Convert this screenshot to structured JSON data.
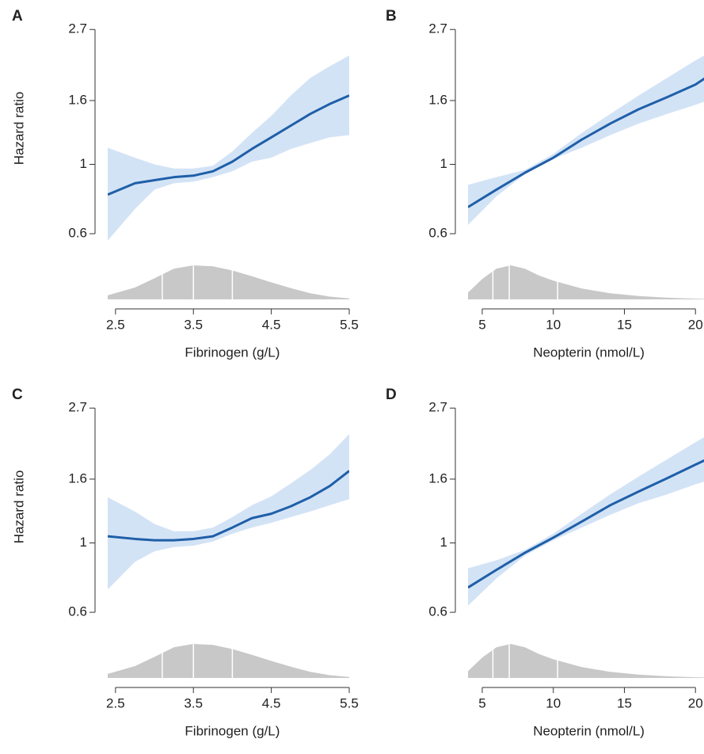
{
  "chart_data": [
    {
      "type": "line",
      "panel": "A",
      "ylabel": "Hazard ratio",
      "xlabel": "Fibrinogen (g/L)",
      "log_y": true,
      "xlim": [
        2.4,
        5.5
      ],
      "ylim": [
        0.55,
        2.8
      ],
      "xticks": [
        2.5,
        3.5,
        4.5,
        5.5
      ],
      "yticks": [
        0.6,
        1,
        1.6,
        2.7
      ],
      "x": [
        2.4,
        2.75,
        3.0,
        3.25,
        3.5,
        3.75,
        4.0,
        4.25,
        4.5,
        4.75,
        5.0,
        5.25,
        5.5
      ],
      "series": [
        {
          "color": "#1f5fa8",
          "band_color": "#d3e3f6",
          "values": [
            0.8,
            0.87,
            0.89,
            0.91,
            0.92,
            0.95,
            1.02,
            1.12,
            1.22,
            1.33,
            1.45,
            1.56,
            1.66
          ],
          "lower": [
            0.57,
            0.72,
            0.83,
            0.87,
            0.88,
            0.91,
            0.95,
            1.02,
            1.05,
            1.12,
            1.17,
            1.22,
            1.24
          ],
          "upper": [
            1.13,
            1.05,
            1.0,
            0.97,
            0.97,
            0.99,
            1.1,
            1.26,
            1.43,
            1.66,
            1.89,
            2.06,
            2.23
          ]
        }
      ],
      "density": {
        "color": "#c8c8c8",
        "ylim": [
          0,
          1
        ],
        "x": [
          2.4,
          2.75,
          3.0,
          3.25,
          3.5,
          3.75,
          4.0,
          4.25,
          4.5,
          4.75,
          5.0,
          5.25,
          5.5
        ],
        "values": [
          0.12,
          0.35,
          0.62,
          0.9,
          1.0,
          0.97,
          0.85,
          0.68,
          0.5,
          0.33,
          0.18,
          0.08,
          0.03
        ],
        "markers": [
          3.1,
          3.5,
          4.0
        ]
      }
    },
    {
      "type": "line",
      "panel": "B",
      "xlabel": "Neopterin (nmol/L)",
      "log_y": true,
      "xlim": [
        4,
        20.6
      ],
      "ylim": [
        0.55,
        2.8
      ],
      "xticks": [
        5,
        10,
        15,
        20
      ],
      "yticks": [
        0.6,
        1,
        1.6,
        2.7
      ],
      "x": [
        4,
        6,
        8,
        10,
        12,
        14,
        16,
        18,
        20,
        21
      ],
      "series": [
        {
          "color": "#1f5fa8",
          "band_color": "#d3e3f6",
          "values": [
            0.73,
            0.83,
            0.94,
            1.05,
            1.2,
            1.35,
            1.5,
            1.64,
            1.8,
            1.93
          ],
          "lower": [
            0.64,
            0.79,
            0.93,
            1.04,
            1.13,
            1.24,
            1.35,
            1.45,
            1.55,
            1.61
          ],
          "upper": [
            0.86,
            0.91,
            0.96,
            1.08,
            1.26,
            1.45,
            1.66,
            1.89,
            2.15,
            2.28
          ]
        }
      ],
      "density": {
        "color": "#c8c8c8",
        "ylim": [
          0,
          1
        ],
        "x": [
          4,
          5,
          6,
          7,
          8,
          9,
          10,
          12,
          14,
          16,
          18,
          20,
          21
        ],
        "values": [
          0.2,
          0.6,
          0.9,
          1.0,
          0.9,
          0.7,
          0.55,
          0.32,
          0.18,
          0.1,
          0.05,
          0.02,
          0.01
        ],
        "markers": [
          5.75,
          6.9,
          10.3
        ]
      }
    },
    {
      "type": "line",
      "panel": "C",
      "ylabel": "Hazard ratio",
      "xlabel": "Fibrinogen (g/L)",
      "log_y": true,
      "xlim": [
        2.4,
        5.5
      ],
      "ylim": [
        0.55,
        2.8
      ],
      "xticks": [
        2.5,
        3.5,
        4.5,
        5.5
      ],
      "yticks": [
        0.6,
        1,
        1.6,
        2.7
      ],
      "x": [
        2.4,
        2.75,
        3.0,
        3.25,
        3.5,
        3.75,
        4.0,
        4.25,
        4.5,
        4.75,
        5.0,
        5.25,
        5.5
      ],
      "series": [
        {
          "color": "#1f5fa8",
          "band_color": "#d3e3f6",
          "values": [
            1.05,
            1.03,
            1.02,
            1.02,
            1.03,
            1.05,
            1.12,
            1.2,
            1.24,
            1.31,
            1.4,
            1.52,
            1.7
          ],
          "lower": [
            0.71,
            0.87,
            0.94,
            0.97,
            0.98,
            1.01,
            1.07,
            1.12,
            1.16,
            1.21,
            1.26,
            1.32,
            1.38
          ],
          "upper": [
            1.4,
            1.26,
            1.15,
            1.09,
            1.09,
            1.12,
            1.21,
            1.32,
            1.41,
            1.55,
            1.71,
            1.92,
            2.23
          ]
        }
      ],
      "density": {
        "color": "#c8c8c8",
        "ylim": [
          0,
          1
        ],
        "x": [
          2.4,
          2.75,
          3.0,
          3.25,
          3.5,
          3.75,
          4.0,
          4.25,
          4.5,
          4.75,
          5.0,
          5.25,
          5.5
        ],
        "values": [
          0.12,
          0.35,
          0.62,
          0.9,
          1.0,
          0.97,
          0.85,
          0.68,
          0.5,
          0.33,
          0.18,
          0.08,
          0.03
        ],
        "markers": [
          3.1,
          3.5,
          4.0
        ]
      }
    },
    {
      "type": "line",
      "panel": "D",
      "xlabel": "Neopterin (nmol/L)",
      "log_y": true,
      "xlim": [
        4,
        20.6
      ],
      "ylim": [
        0.55,
        2.8
      ],
      "xticks": [
        5,
        10,
        15,
        20
      ],
      "yticks": [
        0.6,
        1,
        1.6,
        2.7
      ],
      "x": [
        4,
        6,
        8,
        10,
        12,
        14,
        16,
        18,
        20,
        21
      ],
      "series": [
        {
          "color": "#1f5fa8",
          "band_color": "#d3e3f6",
          "values": [
            0.72,
            0.82,
            0.93,
            1.04,
            1.17,
            1.32,
            1.46,
            1.61,
            1.78,
            1.87
          ],
          "lower": [
            0.63,
            0.77,
            0.91,
            1.02,
            1.12,
            1.23,
            1.34,
            1.43,
            1.54,
            1.59
          ],
          "upper": [
            0.83,
            0.88,
            0.95,
            1.07,
            1.24,
            1.43,
            1.63,
            1.85,
            2.1,
            2.23
          ]
        }
      ],
      "density": {
        "color": "#c8c8c8",
        "ylim": [
          0,
          1
        ],
        "x": [
          4,
          5,
          6,
          7,
          8,
          9,
          10,
          12,
          14,
          16,
          18,
          20,
          21
        ],
        "values": [
          0.2,
          0.6,
          0.9,
          1.0,
          0.9,
          0.7,
          0.55,
          0.32,
          0.18,
          0.1,
          0.05,
          0.02,
          0.01
        ],
        "markers": [
          5.75,
          6.9,
          10.3
        ]
      }
    }
  ]
}
